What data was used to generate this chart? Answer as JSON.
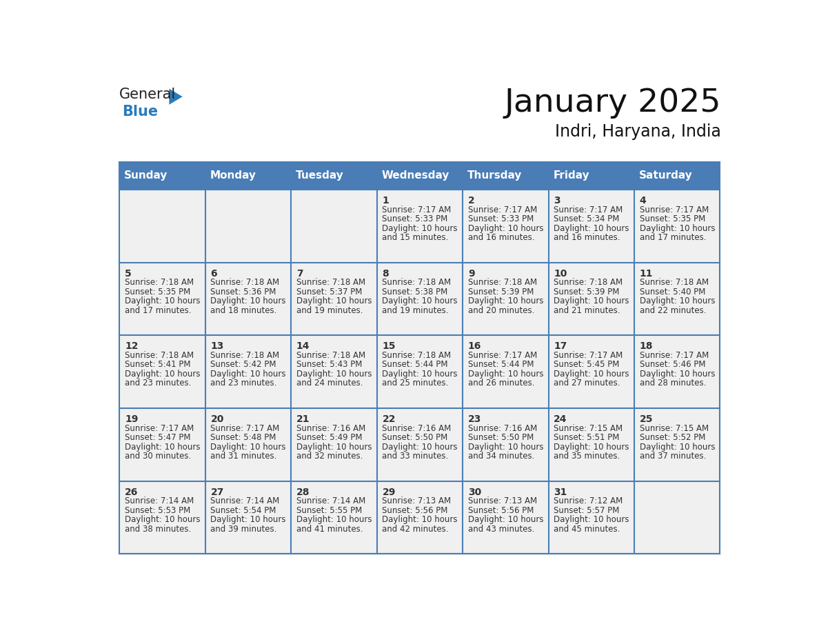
{
  "title": "January 2025",
  "subtitle": "Indri, Haryana, India",
  "header_bg": "#4a7db5",
  "header_text": "#ffffff",
  "day_names": [
    "Sunday",
    "Monday",
    "Tuesday",
    "Wednesday",
    "Thursday",
    "Friday",
    "Saturday"
  ],
  "cell_bg": "#f0f0f0",
  "border_color": "#4a7db5",
  "text_color": "#333333",
  "days": [
    {
      "date": 1,
      "col": 3,
      "row": 0,
      "sunrise": "7:17 AM",
      "sunset": "5:33 PM",
      "daylight_h": "10 hours",
      "daylight_m": "and 15 minutes."
    },
    {
      "date": 2,
      "col": 4,
      "row": 0,
      "sunrise": "7:17 AM",
      "sunset": "5:33 PM",
      "daylight_h": "10 hours",
      "daylight_m": "and 16 minutes."
    },
    {
      "date": 3,
      "col": 5,
      "row": 0,
      "sunrise": "7:17 AM",
      "sunset": "5:34 PM",
      "daylight_h": "10 hours",
      "daylight_m": "and 16 minutes."
    },
    {
      "date": 4,
      "col": 6,
      "row": 0,
      "sunrise": "7:17 AM",
      "sunset": "5:35 PM",
      "daylight_h": "10 hours",
      "daylight_m": "and 17 minutes."
    },
    {
      "date": 5,
      "col": 0,
      "row": 1,
      "sunrise": "7:18 AM",
      "sunset": "5:35 PM",
      "daylight_h": "10 hours",
      "daylight_m": "and 17 minutes."
    },
    {
      "date": 6,
      "col": 1,
      "row": 1,
      "sunrise": "7:18 AM",
      "sunset": "5:36 PM",
      "daylight_h": "10 hours",
      "daylight_m": "and 18 minutes."
    },
    {
      "date": 7,
      "col": 2,
      "row": 1,
      "sunrise": "7:18 AM",
      "sunset": "5:37 PM",
      "daylight_h": "10 hours",
      "daylight_m": "and 19 minutes."
    },
    {
      "date": 8,
      "col": 3,
      "row": 1,
      "sunrise": "7:18 AM",
      "sunset": "5:38 PM",
      "daylight_h": "10 hours",
      "daylight_m": "and 19 minutes."
    },
    {
      "date": 9,
      "col": 4,
      "row": 1,
      "sunrise": "7:18 AM",
      "sunset": "5:39 PM",
      "daylight_h": "10 hours",
      "daylight_m": "and 20 minutes."
    },
    {
      "date": 10,
      "col": 5,
      "row": 1,
      "sunrise": "7:18 AM",
      "sunset": "5:39 PM",
      "daylight_h": "10 hours",
      "daylight_m": "and 21 minutes."
    },
    {
      "date": 11,
      "col": 6,
      "row": 1,
      "sunrise": "7:18 AM",
      "sunset": "5:40 PM",
      "daylight_h": "10 hours",
      "daylight_m": "and 22 minutes."
    },
    {
      "date": 12,
      "col": 0,
      "row": 2,
      "sunrise": "7:18 AM",
      "sunset": "5:41 PM",
      "daylight_h": "10 hours",
      "daylight_m": "and 23 minutes."
    },
    {
      "date": 13,
      "col": 1,
      "row": 2,
      "sunrise": "7:18 AM",
      "sunset": "5:42 PM",
      "daylight_h": "10 hours",
      "daylight_m": "and 23 minutes."
    },
    {
      "date": 14,
      "col": 2,
      "row": 2,
      "sunrise": "7:18 AM",
      "sunset": "5:43 PM",
      "daylight_h": "10 hours",
      "daylight_m": "and 24 minutes."
    },
    {
      "date": 15,
      "col": 3,
      "row": 2,
      "sunrise": "7:18 AM",
      "sunset": "5:44 PM",
      "daylight_h": "10 hours",
      "daylight_m": "and 25 minutes."
    },
    {
      "date": 16,
      "col": 4,
      "row": 2,
      "sunrise": "7:17 AM",
      "sunset": "5:44 PM",
      "daylight_h": "10 hours",
      "daylight_m": "and 26 minutes."
    },
    {
      "date": 17,
      "col": 5,
      "row": 2,
      "sunrise": "7:17 AM",
      "sunset": "5:45 PM",
      "daylight_h": "10 hours",
      "daylight_m": "and 27 minutes."
    },
    {
      "date": 18,
      "col": 6,
      "row": 2,
      "sunrise": "7:17 AM",
      "sunset": "5:46 PM",
      "daylight_h": "10 hours",
      "daylight_m": "and 28 minutes."
    },
    {
      "date": 19,
      "col": 0,
      "row": 3,
      "sunrise": "7:17 AM",
      "sunset": "5:47 PM",
      "daylight_h": "10 hours",
      "daylight_m": "and 30 minutes."
    },
    {
      "date": 20,
      "col": 1,
      "row": 3,
      "sunrise": "7:17 AM",
      "sunset": "5:48 PM",
      "daylight_h": "10 hours",
      "daylight_m": "and 31 minutes."
    },
    {
      "date": 21,
      "col": 2,
      "row": 3,
      "sunrise": "7:16 AM",
      "sunset": "5:49 PM",
      "daylight_h": "10 hours",
      "daylight_m": "and 32 minutes."
    },
    {
      "date": 22,
      "col": 3,
      "row": 3,
      "sunrise": "7:16 AM",
      "sunset": "5:50 PM",
      "daylight_h": "10 hours",
      "daylight_m": "and 33 minutes."
    },
    {
      "date": 23,
      "col": 4,
      "row": 3,
      "sunrise": "7:16 AM",
      "sunset": "5:50 PM",
      "daylight_h": "10 hours",
      "daylight_m": "and 34 minutes."
    },
    {
      "date": 24,
      "col": 5,
      "row": 3,
      "sunrise": "7:15 AM",
      "sunset": "5:51 PM",
      "daylight_h": "10 hours",
      "daylight_m": "and 35 minutes."
    },
    {
      "date": 25,
      "col": 6,
      "row": 3,
      "sunrise": "7:15 AM",
      "sunset": "5:52 PM",
      "daylight_h": "10 hours",
      "daylight_m": "and 37 minutes."
    },
    {
      "date": 26,
      "col": 0,
      "row": 4,
      "sunrise": "7:14 AM",
      "sunset": "5:53 PM",
      "daylight_h": "10 hours",
      "daylight_m": "and 38 minutes."
    },
    {
      "date": 27,
      "col": 1,
      "row": 4,
      "sunrise": "7:14 AM",
      "sunset": "5:54 PM",
      "daylight_h": "10 hours",
      "daylight_m": "and 39 minutes."
    },
    {
      "date": 28,
      "col": 2,
      "row": 4,
      "sunrise": "7:14 AM",
      "sunset": "5:55 PM",
      "daylight_h": "10 hours",
      "daylight_m": "and 41 minutes."
    },
    {
      "date": 29,
      "col": 3,
      "row": 4,
      "sunrise": "7:13 AM",
      "sunset": "5:56 PM",
      "daylight_h": "10 hours",
      "daylight_m": "and 42 minutes."
    },
    {
      "date": 30,
      "col": 4,
      "row": 4,
      "sunrise": "7:13 AM",
      "sunset": "5:56 PM",
      "daylight_h": "10 hours",
      "daylight_m": "and 43 minutes."
    },
    {
      "date": 31,
      "col": 5,
      "row": 4,
      "sunrise": "7:12 AM",
      "sunset": "5:57 PM",
      "daylight_h": "10 hours",
      "daylight_m": "and 45 minutes."
    }
  ],
  "num_rows": 5,
  "fig_width": 11.88,
  "fig_height": 9.18,
  "dpi": 100
}
